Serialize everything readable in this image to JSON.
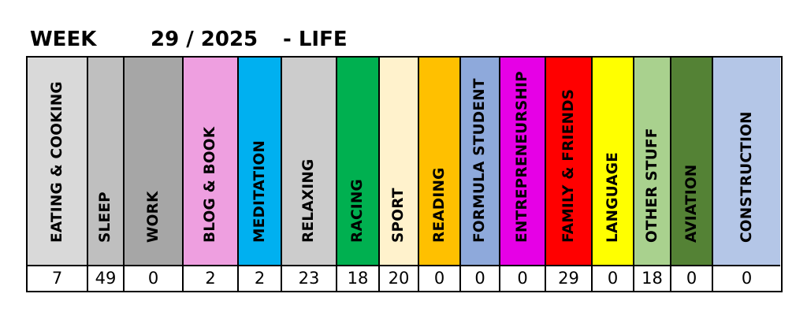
{
  "header": {
    "week_label": "WEEK",
    "week_number": "29 / 2025",
    "section": "- LIFE"
  },
  "categories": [
    {
      "label": "EATING & COOKING",
      "value": "7",
      "color": "#D9D9D9"
    },
    {
      "label": "SLEEP",
      "value": "49",
      "color": "#BFBFBF"
    },
    {
      "label": "WORK",
      "value": "0",
      "color": "#A6A6A6"
    },
    {
      "label": "BLOG & BOOK",
      "value": "2",
      "color": "#EE9FE0"
    },
    {
      "label": "MEDITATION",
      "value": "2",
      "color": "#00B0F0"
    },
    {
      "label": "RELAXING",
      "value": "23",
      "color": "#CCCCCC"
    },
    {
      "label": "RACING",
      "value": "18",
      "color": "#00B050"
    },
    {
      "label": "SPORT",
      "value": "20",
      "color": "#FFF2CC"
    },
    {
      "label": "READING",
      "value": "0",
      "color": "#FFC000"
    },
    {
      "label": "FORMULA STUDENT",
      "value": "0",
      "color": "#8EA9DB"
    },
    {
      "label": "ENTREPRENEURSHIP",
      "value": "0",
      "color": "#E600E6"
    },
    {
      "label": "FAMILY & FRIENDS",
      "value": "29",
      "color": "#FF0000"
    },
    {
      "label": "LANGUAGE",
      "value": "0",
      "color": "#FFFF00"
    },
    {
      "label": "OTHER STUFF",
      "value": "18",
      "color": "#A9D18E"
    },
    {
      "label": "AVIATION",
      "value": "0",
      "color": "#548235"
    },
    {
      "label": "CONSTRUCTION",
      "value": "0",
      "color": "#B4C6E7"
    }
  ]
}
